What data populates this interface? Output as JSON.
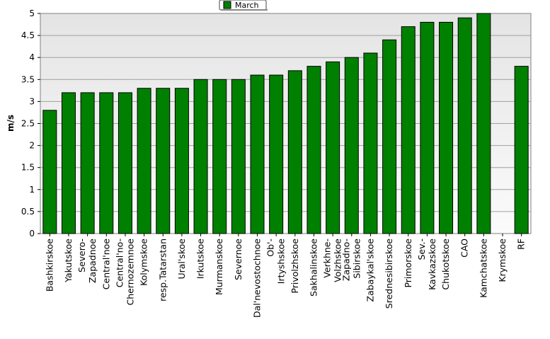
{
  "chart_data": {
    "type": "bar",
    "title": "",
    "xlabel": "",
    "ylabel": "m/s",
    "ylim": [
      0,
      5
    ],
    "yticks": [
      "0",
      "0.5",
      "1",
      "1.5",
      "2",
      "2.5",
      "3",
      "3.5",
      "4",
      "4.5",
      "5"
    ],
    "grid": true,
    "legend_position": "top-center",
    "bar_color": "#008000",
    "series": [
      {
        "name": "March",
        "values": [
          2.8,
          3.2,
          3.2,
          3.2,
          3.2,
          3.3,
          3.3,
          3.3,
          3.5,
          3.5,
          3.5,
          3.6,
          3.6,
          3.7,
          3.8,
          3.9,
          4.0,
          4.1,
          4.4,
          4.7,
          4.8,
          4.8,
          4.9,
          5.0,
          null,
          3.8
        ]
      }
    ],
    "categories": [
      "Bashkirskoe",
      "Yakutskoe",
      "Severo-Zapadnoe",
      "Central'noe",
      "Central'no-Chernozemnoe",
      "Kolymskoe",
      "resp.Tatarstan",
      "Ural'skoe",
      "Irkutskoe",
      "Murmanskoe",
      "Severnoe",
      "Dal'nevostochnoe",
      "Ob'-Irtyshskoe",
      "Privolzhskoe",
      "Sakhalinskoe",
      "Verkhne-Volzhskoe",
      "Zapadno-Sibirskoe",
      "Zabaykal'skoe",
      "Srednesibirskoe",
      "Primorskoe",
      "Sev.-Kavkazskoe",
      "Chukotskoe",
      "CAO",
      "Kamchatskoe",
      "Krymskoe",
      "RF"
    ],
    "tick_labels": [
      [
        "Bashkirskoe"
      ],
      [
        "Yakutskoe"
      ],
      [
        "Severo-",
        "Zapadnoe"
      ],
      [
        "Central'noe"
      ],
      [
        "Central'no-",
        "Chernozemnoe"
      ],
      [
        "Kolymskoe"
      ],
      [
        "resp.Tatarstan"
      ],
      [
        "Ural'skoe"
      ],
      [
        "Irkutskoe"
      ],
      [
        "Murmanskoe"
      ],
      [
        "Severnoe"
      ],
      [
        "Dal'nevostochnoe"
      ],
      [
        "Ob'-",
        "Irtyshskoe"
      ],
      [
        "Privolzhskoe"
      ],
      [
        "Sakhalinskoe"
      ],
      [
        "Verkhne-",
        "Volzhskoe"
      ],
      [
        "Zapadno-",
        "Sibirskoe"
      ],
      [
        "Zabaykal'skoe"
      ],
      [
        "Srednesibirskoe"
      ],
      [
        "Primorskoe"
      ],
      [
        "Sev.-",
        "Kavkazskoe"
      ],
      [
        "Chukotskoe"
      ],
      [
        "CAO"
      ],
      [
        "Kamchatskoe"
      ],
      [
        "Krymskoe"
      ],
      [
        "RF"
      ]
    ]
  }
}
